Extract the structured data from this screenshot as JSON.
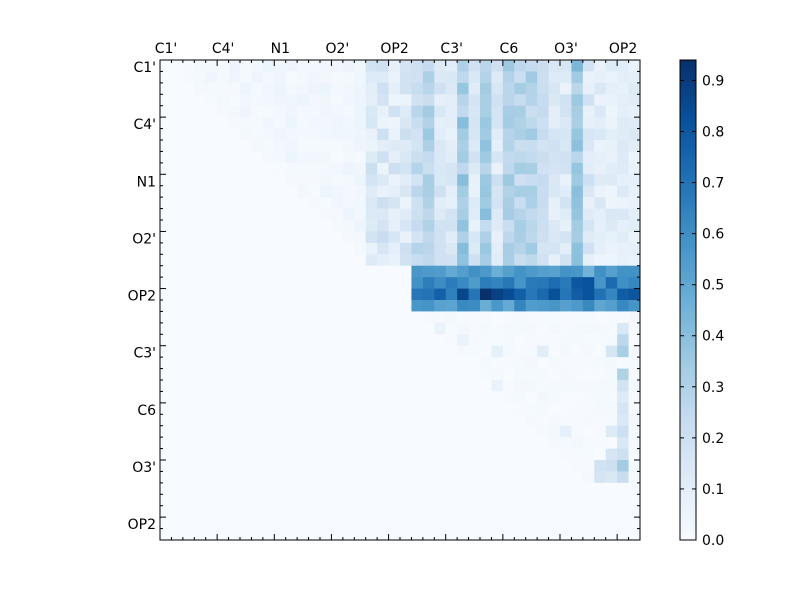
{
  "chart_data": {
    "type": "heatmap",
    "title": "",
    "xlabel": "",
    "ylabel": "",
    "x_tick_labels": [
      "C1'",
      "C4'",
      "N1",
      "O2'",
      "OP2",
      "C3'",
      "C6",
      "O3'",
      "OP2"
    ],
    "y_tick_labels": [
      "C1'",
      "C4'",
      "N1",
      "O2'",
      "OP2",
      "C3'",
      "C6",
      "O3'",
      "OP2"
    ],
    "x_axis_position": "top",
    "grid": false,
    "colormap": "Blues",
    "color_min": "#f7fbff",
    "color_max": "#08306b",
    "rows": 42,
    "cols": 42,
    "colorbar": {
      "min": 0.0,
      "max": 0.94,
      "tick_labels": [
        "0.0",
        "0.1",
        "0.2",
        "0.3",
        "0.4",
        "0.5",
        "0.6",
        "0.7",
        "0.8",
        "0.9"
      ],
      "tick_values": [
        0.0,
        0.1,
        0.2,
        0.3,
        0.4,
        0.5,
        0.6,
        0.7,
        0.8,
        0.9
      ]
    },
    "stripe_cols": [
      22,
      23,
      24,
      26,
      28,
      30,
      31,
      32,
      33,
      36
    ],
    "stripe_col_values": [
      0.24,
      0.3,
      0.12,
      0.34,
      0.34,
      0.3,
      0.28,
      0.3,
      0.22,
      0.36
    ],
    "strong_rows": [
      {
        "row": 18,
        "base": 0.52
      },
      {
        "row": 19,
        "base": 0.64
      },
      {
        "row": 20,
        "base": 0.74
      },
      {
        "row": 21,
        "base": 0.56
      }
    ],
    "strong_row_start_col": 22,
    "strong_row_peaks": [
      {
        "row": 20,
        "col": 28,
        "value": 0.94
      },
      {
        "row": 20,
        "col": 26,
        "value": 0.86
      },
      {
        "row": 20,
        "col": 29,
        "value": 0.88
      },
      {
        "row": 20,
        "col": 30,
        "value": 0.84
      },
      {
        "row": 19,
        "col": 36,
        "value": 0.8
      },
      {
        "row": 19,
        "col": 37,
        "value": 0.82
      },
      {
        "row": 20,
        "col": 40,
        "value": 0.78
      }
    ],
    "lower_cells": [
      {
        "row": 23,
        "col": 24,
        "value": 0.06
      },
      {
        "row": 23,
        "col": 40,
        "value": 0.14
      },
      {
        "row": 24,
        "col": 26,
        "value": 0.06
      },
      {
        "row": 24,
        "col": 40,
        "value": 0.26
      },
      {
        "row": 25,
        "col": 29,
        "value": 0.08
      },
      {
        "row": 25,
        "col": 33,
        "value": 0.1
      },
      {
        "row": 25,
        "col": 39,
        "value": 0.16
      },
      {
        "row": 25,
        "col": 40,
        "value": 0.32
      },
      {
        "row": 27,
        "col": 40,
        "value": 0.3
      },
      {
        "row": 28,
        "col": 29,
        "value": 0.06
      },
      {
        "row": 28,
        "col": 40,
        "value": 0.18
      },
      {
        "row": 29,
        "col": 40,
        "value": 0.12
      },
      {
        "row": 30,
        "col": 40,
        "value": 0.16
      },
      {
        "row": 31,
        "col": 40,
        "value": 0.14
      },
      {
        "row": 32,
        "col": 35,
        "value": 0.08
      },
      {
        "row": 32,
        "col": 39,
        "value": 0.12
      },
      {
        "row": 32,
        "col": 40,
        "value": 0.2
      },
      {
        "row": 33,
        "col": 40,
        "value": 0.14
      },
      {
        "row": 34,
        "col": 39,
        "value": 0.16
      },
      {
        "row": 34,
        "col": 40,
        "value": 0.2
      },
      {
        "row": 35,
        "col": 38,
        "value": 0.18
      },
      {
        "row": 35,
        "col": 39,
        "value": 0.2
      },
      {
        "row": 35,
        "col": 40,
        "value": 0.34
      },
      {
        "row": 36,
        "col": 38,
        "value": 0.16
      },
      {
        "row": 36,
        "col": 39,
        "value": 0.14
      },
      {
        "row": 36,
        "col": 40,
        "value": 0.22
      }
    ]
  }
}
